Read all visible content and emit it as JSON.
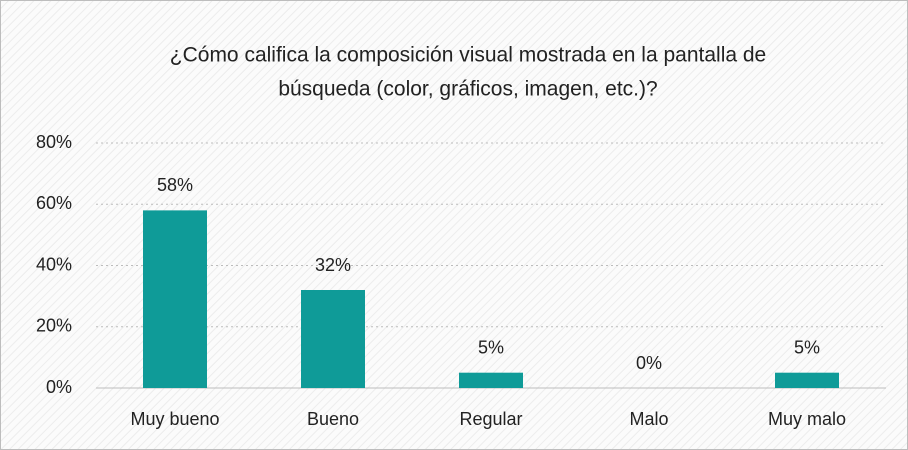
{
  "chart_data": {
    "type": "bar",
    "title": [
      "¿Cómo califica la composición visual mostrada en la pantalla de",
      "búsqueda (color, gráficos, imagen, etc.)?"
    ],
    "categories": [
      "Muy bueno",
      "Bueno",
      "Regular",
      "Malo",
      "Muy malo"
    ],
    "values": [
      58,
      32,
      5,
      0,
      5
    ],
    "value_labels": [
      "58%",
      "32%",
      "5%",
      "0%",
      "5%"
    ],
    "color": "#0f9b98",
    "ylim": [
      0,
      80
    ],
    "yticks": [
      {
        "value": 0,
        "label": "0%"
      },
      {
        "value": 20,
        "label": "20%"
      },
      {
        "value": 40,
        "label": "40%"
      },
      {
        "value": 60,
        "label": "60%"
      },
      {
        "value": 80,
        "label": "80%"
      }
    ],
    "grid": true
  }
}
